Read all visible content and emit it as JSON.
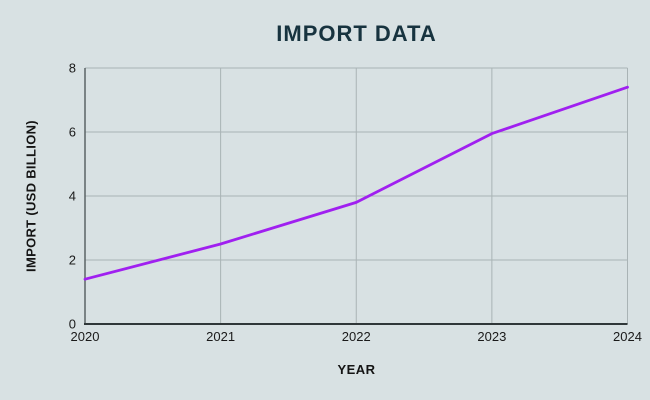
{
  "page": {
    "background": "#D8E1E3"
  },
  "chart_data": {
    "type": "line",
    "title": "IMPORT DATA",
    "xlabel": "YEAR",
    "ylabel": "IMPORT (USD BILLION)",
    "x": [
      2020,
      2021,
      2022,
      2023,
      2024
    ],
    "values": [
      1.4,
      2.5,
      3.8,
      5.95,
      7.4
    ],
    "ylim": [
      0,
      8
    ],
    "yticks": [
      0,
      2,
      4,
      6,
      8
    ],
    "grid": true,
    "legend": "none",
    "colors": {
      "line": "#A020F0",
      "grid": "#A9B3B5",
      "axis_x": "#2F3739",
      "axis_y": "#5A6466",
      "tick_text": "#1A1A1A",
      "title_text": "#17333F",
      "background": "#D8E1E3"
    }
  }
}
